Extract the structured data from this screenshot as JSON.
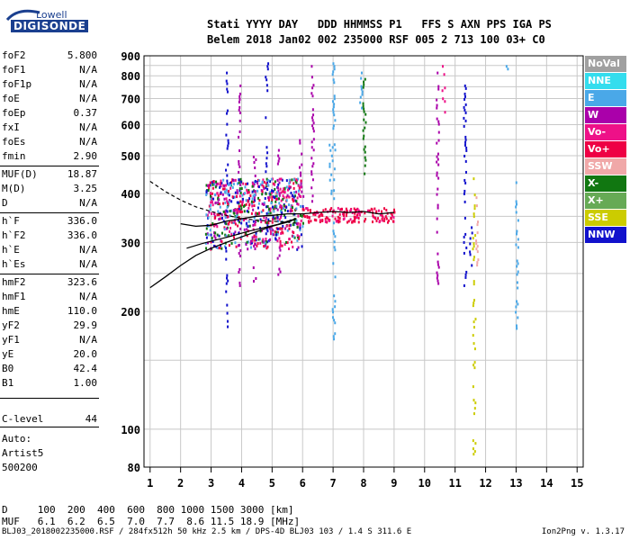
{
  "logo": {
    "line1": "Lowell",
    "line2": "DIGISONDE"
  },
  "header": {
    "row1": "Stati YYYY DAY   DDD HHMMSS P1   FFS S AXN PPS IGA PS",
    "row2": "Belem 2018 Jan02 002 235000 RSF 005 2 713 100 03+ C0"
  },
  "scaled_params": [
    {
      "label": "foF2",
      "value": "5.800"
    },
    {
      "label": "foF1",
      "value": "N/A"
    },
    {
      "label": "foF1p",
      "value": "N/A"
    },
    {
      "label": "foE",
      "value": "N/A"
    },
    {
      "label": "foEp",
      "value": "0.37"
    },
    {
      "label": "fxI",
      "value": "N/A"
    },
    {
      "label": "foEs",
      "value": "N/A"
    },
    {
      "label": "fmin",
      "value": "2.90"
    },
    {
      "label": "MUF(D)",
      "value": "18.87"
    },
    {
      "label": "M(D)",
      "value": "3.25"
    },
    {
      "label": "D",
      "value": "N/A"
    },
    {
      "label": "h`F",
      "value": "336.0"
    },
    {
      "label": "h`F2",
      "value": "336.0"
    },
    {
      "label": "h`E",
      "value": "N/A"
    },
    {
      "label": "h`Es",
      "value": "N/A"
    },
    {
      "label": "hmF2",
      "value": "323.6"
    },
    {
      "label": "hmF1",
      "value": "N/A"
    },
    {
      "label": "hmE",
      "value": "110.0"
    },
    {
      "label": "yF2",
      "value": "29.9"
    },
    {
      "label": "yF1",
      "value": "N/A"
    },
    {
      "label": "yE",
      "value": "20.0"
    },
    {
      "label": "B0",
      "value": "42.4"
    },
    {
      "label": "B1",
      "value": "1.00"
    },
    {
      "label": "C-level",
      "value": "44"
    }
  ],
  "auto": {
    "line1": "Auto:",
    "line2": "Artist5",
    "line3": "500200"
  },
  "legend": [
    {
      "label": "NoVal",
      "color": "#a0a0a0"
    },
    {
      "label": "NNE",
      "color": "#33ddee"
    },
    {
      "label": "E",
      "color": "#4aa8e8"
    },
    {
      "label": "W",
      "color": "#aa00aa"
    },
    {
      "label": "Vo-",
      "color": "#ee1188"
    },
    {
      "label": "Vo+",
      "color": "#ee0044"
    },
    {
      "label": "SSW",
      "color": "#f0a8a8"
    },
    {
      "label": "X-",
      "color": "#117711"
    },
    {
      "label": "X+",
      "color": "#66aa55"
    },
    {
      "label": "SSE",
      "color": "#cccc00"
    },
    {
      "label": "NNW",
      "color": "#1111cc"
    }
  ],
  "muf_table": {
    "row1": "D     100  200  400  600  800 1000 1500 3000 [km]",
    "row2": "MUF   6.1  6.2  6.5  7.0  7.7  8.6 11.5 18.9 [MHz]"
  },
  "footer": {
    "file": "BLJ03_2018002235000.RSF / 284fx512h 50 kHz 2.5 km / DPS-4D BLJ03 103 / 1.4 S 311.6 E",
    "version": "Ion2Png v. 1.3.17"
  },
  "chart_data": {
    "type": "scatter",
    "title": "",
    "xlabel": "",
    "ylabel": "",
    "xlim": [
      0.8,
      15.2
    ],
    "ylim": [
      80,
      900
    ],
    "y_scale": "log",
    "xticks": [
      1,
      2,
      3,
      4,
      5,
      6,
      7,
      8,
      9,
      10,
      11,
      12,
      13,
      14,
      15
    ],
    "yticks": [
      80,
      100,
      200,
      300,
      400,
      500,
      600,
      700,
      800,
      900
    ],
    "grid": true,
    "legend_position": "right",
    "trace_columns": [
      {
        "x": 3.1,
        "y": [
          290,
          440
        ],
        "color": "#aa00aa"
      },
      {
        "x": 3.5,
        "y": [
          180,
          860
        ],
        "color": "#1111cc"
      },
      {
        "x": 3.9,
        "y": [
          230,
          760
        ],
        "color": "#aa00aa"
      },
      {
        "x": 4.4,
        "y": [
          240,
          500
        ],
        "color": "#aa00aa"
      },
      {
        "x": 4.8,
        "y": [
          300,
          880
        ],
        "color": "#1111cc"
      },
      {
        "x": 5.2,
        "y": [
          250,
          520
        ],
        "color": "#aa00aa"
      },
      {
        "x": 5.9,
        "y": [
          330,
          560
        ],
        "color": "#aa00aa"
      },
      {
        "x": 6.3,
        "y": [
          380,
          880
        ],
        "color": "#aa00aa"
      },
      {
        "x": 6.9,
        "y": [
          400,
          590
        ],
        "color": "#4aa8e8"
      },
      {
        "x": 7.0,
        "y": [
          170,
          880
        ],
        "color": "#4aa8e8"
      },
      {
        "x": 7.9,
        "y": [
          640,
          860
        ],
        "color": "#4aa8e8"
      },
      {
        "x": 8.0,
        "y": [
          440,
          790
        ],
        "color": "#117711"
      },
      {
        "x": 10.4,
        "y": [
          220,
          820
        ],
        "color": "#aa00aa"
      },
      {
        "x": 10.6,
        "y": [
          650,
          880
        ],
        "color": "#ee1188"
      },
      {
        "x": 11.3,
        "y": [
          230,
          760
        ],
        "color": "#1111cc"
      },
      {
        "x": 11.5,
        "y": [
          260,
          330
        ],
        "color": "#1111cc"
      },
      {
        "x": 11.6,
        "y": [
          85,
          440
        ],
        "color": "#cccc00"
      },
      {
        "x": 11.7,
        "y": [
          260,
          400
        ],
        "color": "#f0a8a8"
      },
      {
        "x": 12.7,
        "y": [
          780,
          880
        ],
        "color": "#4aa8e8"
      },
      {
        "x": 13.0,
        "y": [
          180,
          430
        ],
        "color": "#4aa8e8"
      }
    ],
    "o_trace": {
      "x": [
        2.0,
        2.5,
        3.0,
        3.5,
        4.0,
        4.5,
        5.0,
        5.5,
        6.0,
        6.5,
        7.0,
        7.5,
        8.0,
        8.5,
        9.0
      ],
      "y": [
        335,
        330,
        332,
        340,
        345,
        350,
        352,
        355,
        355,
        358,
        360,
        358,
        360,
        355,
        358
      ]
    },
    "profile": {
      "x": [
        1.0,
        1.5,
        2.0,
        2.5,
        3.0,
        3.5,
        4.0,
        4.5,
        5.0,
        5.5,
        5.8
      ],
      "y": [
        230,
        245,
        262,
        278,
        290,
        300,
        310,
        320,
        330,
        338,
        345
      ]
    },
    "dashed": {
      "x": [
        1.0,
        1.5,
        2.0,
        2.5,
        3.0,
        3.5,
        4.0,
        4.5,
        5.0,
        5.5,
        5.8
      ],
      "y": [
        430,
        405,
        385,
        370,
        360,
        352,
        346,
        342,
        340,
        338,
        336
      ]
    },
    "virtual": {
      "x": [
        2.2,
        2.7,
        3.2,
        3.7,
        4.2,
        4.7,
        5.2,
        5.5,
        5.8
      ],
      "y": [
        290,
        298,
        305,
        312,
        320,
        327,
        334,
        340,
        345
      ]
    }
  }
}
